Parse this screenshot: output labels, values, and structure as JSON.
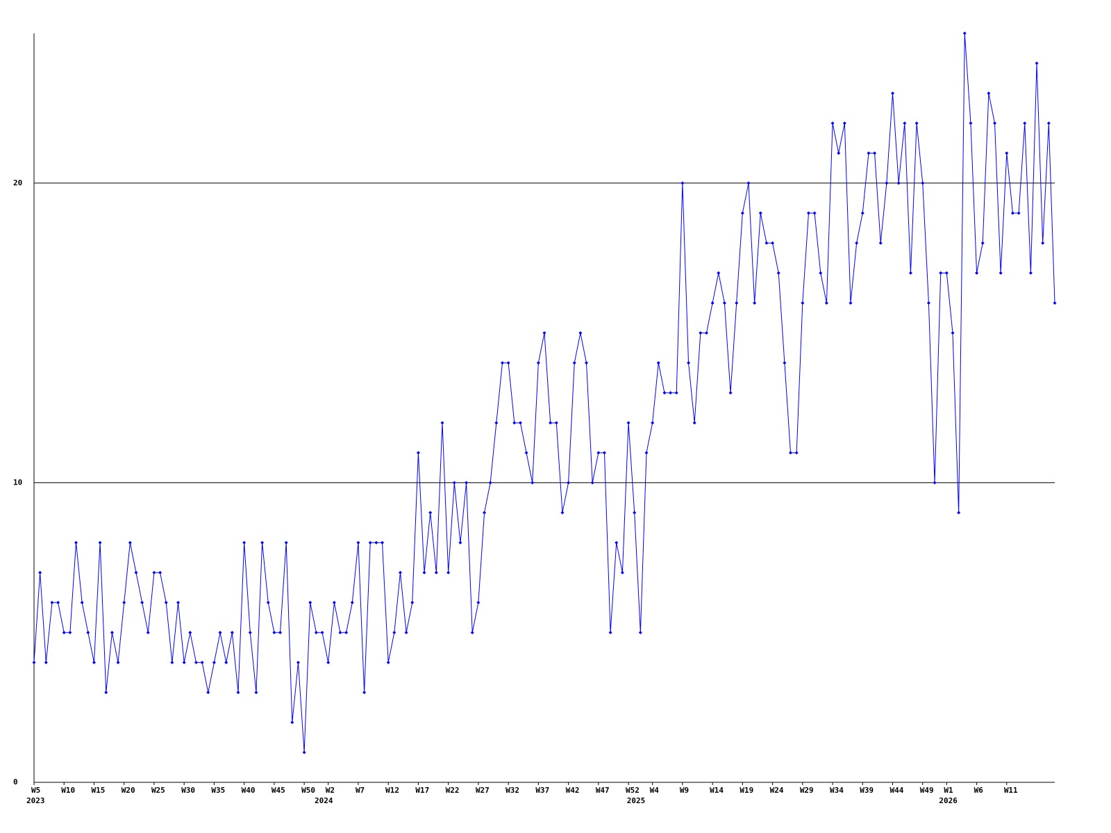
{
  "chart_data": {
    "type": "line",
    "categories": [
      "W5",
      null,
      null,
      null,
      null,
      "W10",
      null,
      null,
      null,
      null,
      "W15",
      null,
      null,
      null,
      null,
      "W20",
      null,
      null,
      null,
      null,
      "W25",
      null,
      null,
      null,
      null,
      "W30",
      null,
      null,
      null,
      null,
      "W35",
      null,
      null,
      null,
      null,
      "W40",
      null,
      null,
      null,
      null,
      "W45",
      null,
      null,
      null,
      null,
      "W50",
      null,
      null,
      null,
      "W2",
      null,
      null,
      null,
      null,
      "W7",
      null,
      null,
      null,
      null,
      "W12",
      null,
      null,
      null,
      null,
      "W17",
      null,
      null,
      null,
      null,
      "W22",
      null,
      null,
      null,
      null,
      "W27",
      null,
      null,
      null,
      null,
      "W32",
      null,
      null,
      null,
      null,
      "W37",
      null,
      null,
      null,
      null,
      "W42",
      null,
      null,
      null,
      null,
      "W47",
      null,
      null,
      null,
      null,
      "W52",
      null,
      null,
      null,
      "W4",
      null,
      null,
      null,
      null,
      "W9",
      null,
      null,
      null,
      null,
      "W14",
      null,
      null,
      null,
      null,
      "W19",
      null,
      null,
      null,
      null,
      "W24",
      null,
      null,
      null,
      null,
      "W29",
      null,
      null,
      null,
      null,
      "W34",
      null,
      null,
      null,
      null,
      "W39",
      null,
      null,
      null,
      null,
      "W44",
      null,
      null,
      null,
      null,
      "W49",
      null,
      null,
      null,
      "W1",
      null,
      null,
      null,
      null,
      "W6",
      null,
      null,
      null,
      null,
      "W11",
      null,
      null,
      null,
      null,
      null,
      null,
      null,
      null
    ],
    "category_years": [
      "2023",
      null,
      null,
      null,
      null,
      null,
      null,
      null,
      null,
      null,
      null,
      null,
      null,
      null,
      null,
      null,
      null,
      null,
      null,
      null,
      null,
      null,
      null,
      null,
      null,
      null,
      null,
      null,
      null,
      null,
      null,
      null,
      null,
      null,
      null,
      null,
      null,
      null,
      null,
      null,
      null,
      null,
      null,
      null,
      null,
      null,
      null,
      null,
      "2024",
      null,
      null,
      null,
      null,
      null,
      null,
      null,
      null,
      null,
      null,
      null,
      null,
      null,
      null,
      null,
      null,
      null,
      null,
      null,
      null,
      null,
      null,
      null,
      null,
      null,
      null,
      null,
      null,
      null,
      null,
      null,
      null,
      null,
      null,
      null,
      null,
      null,
      null,
      null,
      null,
      null,
      null,
      null,
      null,
      null,
      null,
      null,
      null,
      null,
      null,
      null,
      "2025",
      null,
      null,
      null,
      null,
      null,
      null,
      null,
      null,
      null,
      null,
      null,
      null,
      null,
      null,
      null,
      null,
      null,
      null,
      null,
      null,
      null,
      null,
      null,
      null,
      null,
      null,
      null,
      null,
      null,
      null,
      null,
      null,
      null,
      null,
      null,
      null,
      null,
      null,
      null,
      null,
      null,
      null,
      null,
      null,
      null,
      null,
      null,
      null,
      null,
      null,
      null,
      "2026",
      null,
      null,
      null,
      null,
      null,
      null,
      null,
      null,
      null,
      null,
      null,
      null,
      null,
      null,
      null,
      null,
      null,
      null
    ],
    "series": [
      {
        "color": "#0000ff",
        "values": [
          4,
          7,
          4,
          6,
          6,
          5,
          5,
          8,
          6,
          5,
          4,
          8,
          3,
          5,
          4,
          6,
          8,
          7,
          6,
          5,
          7,
          7,
          6,
          4,
          6,
          4,
          5,
          4,
          4,
          3,
          4,
          5,
          4,
          5,
          3,
          8,
          5,
          3,
          8,
          6,
          5,
          5,
          8,
          2,
          4,
          1,
          6,
          5,
          5,
          4,
          6,
          5,
          5,
          6,
          8,
          3,
          8,
          8,
          8,
          4,
          5,
          7,
          5,
          6,
          11,
          7,
          9,
          7,
          12,
          7,
          10,
          8,
          10,
          5,
          6,
          9,
          10,
          12,
          14,
          14,
          12,
          12,
          11,
          10,
          14,
          15,
          12,
          12,
          9,
          10,
          14,
          15,
          14,
          10,
          11,
          11,
          5,
          8,
          7,
          12,
          9,
          5,
          11,
          12,
          14,
          13,
          13,
          13,
          20,
          14,
          12,
          15,
          15,
          16,
          17,
          16,
          13,
          16,
          19,
          20,
          16,
          19,
          18,
          18,
          17,
          14,
          11,
          11,
          16,
          19,
          19,
          17,
          16,
          22,
          21,
          22,
          16,
          18,
          19,
          21,
          21,
          18,
          20,
          23,
          20,
          22,
          17,
          22,
          20,
          16,
          10,
          17,
          17,
          15,
          9,
          25,
          22,
          17,
          18,
          23,
          22,
          17,
          21,
          19,
          19,
          22,
          17,
          24,
          18,
          22,
          16
        ]
      }
    ],
    "ylim": [
      0,
      25
    ],
    "yticks": [
      0,
      10,
      20
    ],
    "grid": true,
    "axis_color": "#000000"
  }
}
